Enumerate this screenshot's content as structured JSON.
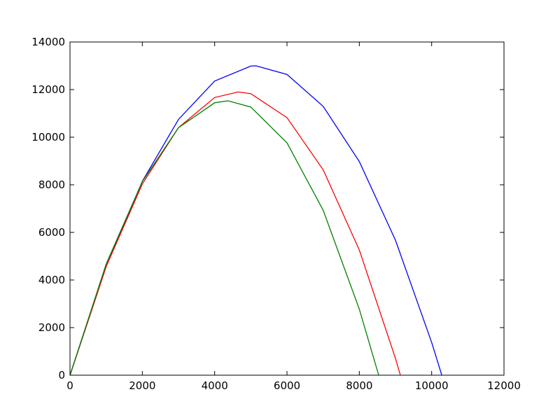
{
  "chart_data": {
    "type": "line",
    "xlim": [
      0,
      12000
    ],
    "xticks": [
      0,
      2000,
      4000,
      6000,
      8000,
      10000,
      12000
    ],
    "ylim": [
      0,
      14000
    ],
    "yticks": [
      0,
      2000,
      4000,
      6000,
      8000,
      10000,
      12000,
      14000
    ],
    "series": [
      {
        "color": "#0000ff",
        "x": [
          0,
          1000,
          2000,
          3000,
          4000,
          5000,
          5140,
          6000,
          7000,
          8000,
          9000,
          10000,
          10280
        ],
        "values": [
          0,
          4566,
          8148,
          10747,
          12360,
          12990,
          13000,
          12636,
          11297,
          8975,
          5668,
          1378,
          0
        ]
      },
      {
        "color": "#ff0000",
        "x": [
          0,
          1000,
          2000,
          3000,
          4000,
          4650,
          5000,
          6000,
          7000,
          8000,
          9000,
          9135
        ],
        "values": [
          0,
          4566,
          8035,
          10402,
          11668,
          11900,
          11827,
          10822,
          8632,
          5260,
          702,
          0
        ]
      },
      {
        "color": "#008000",
        "x": [
          0,
          1000,
          2000,
          3000,
          4000,
          4370,
          5000,
          6000,
          7000,
          8000,
          8535
        ],
        "values": [
          0,
          4673,
          8139,
          10397,
          11447,
          11530,
          11266,
          9764,
          6932,
          2772,
          0
        ]
      }
    ]
  }
}
